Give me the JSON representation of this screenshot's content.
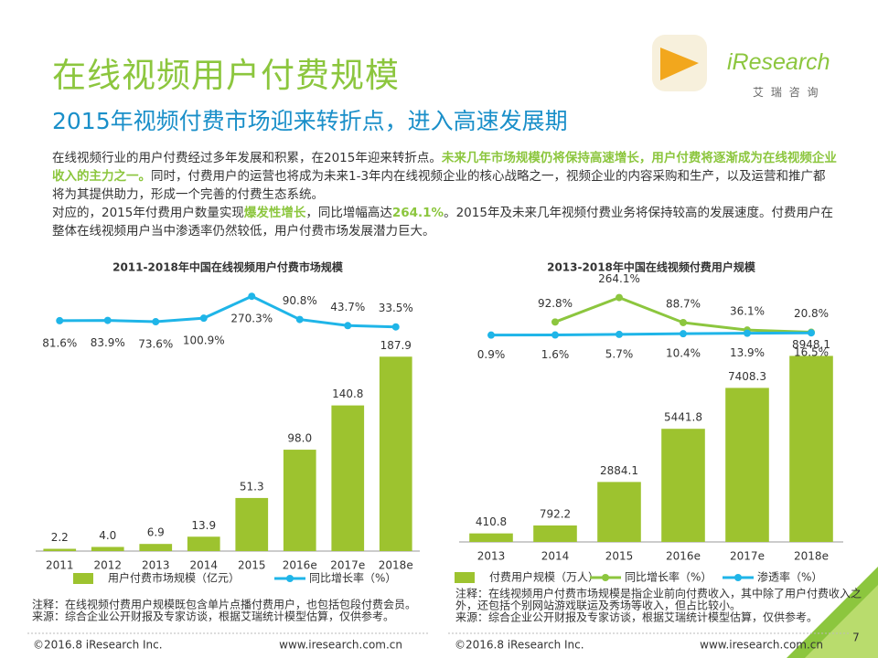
{
  "header": {
    "title": "在线视频用户付费规模",
    "subtitle": "2015年视频付费市场迎来转折点，进入高速发展期",
    "logo": "iResearch",
    "logo_cn": "艾 瑞 咨 询"
  },
  "paragraphs": [
    [
      {
        "text": "在线视频行业的用户付费经过多年发展和积累，在2015年迎来转折点。",
        "highlight": false
      },
      {
        "text": "未来几年市场规模仍将保持高速增长，用户付费将逐渐成为在线视频企业收入的主力之一。",
        "highlight": true
      },
      {
        "text": "同时，付费用户的运营也将成为未来1-3年内在线视频企业的核心战略之一，视频企业的内容采购和生产，以及运营和推广都将为其提供助力，形成一个完善的付费生态系统。",
        "highlight": false
      }
    ],
    [
      {
        "text": "对应的，2015年付费用户数量实现",
        "highlight": false
      },
      {
        "text": "爆发性增长",
        "highlight": true
      },
      {
        "text": "，同比增幅高达",
        "highlight": false
      },
      {
        "text": "264.1%",
        "highlight": true
      },
      {
        "text": "。2015年及未来几年视频付费业务将保持较高的发展速度。付费用户在整体在线视频用户当中渗透率仍然较低，用户付费市场发展潜力巨大。",
        "highlight": false
      }
    ]
  ],
  "chart_data": [
    {
      "type": "bar",
      "title": "2011-2018年中国在线视频用户付费市场规模",
      "categories": [
        "2011",
        "2012",
        "2013",
        "2014",
        "2015",
        "2016e",
        "2017e",
        "2018e"
      ],
      "series": [
        {
          "name": "用户付费市场规模（亿元）",
          "color": "#9dc32f",
          "values": [
            2.2,
            4.0,
            6.9,
            13.9,
            51.3,
            98.0,
            140.8,
            187.9
          ],
          "value_labels": [
            "2.2",
            "4.0",
            "6.9",
            "13.9",
            "51.3",
            "98.0",
            "140.8",
            "187.9"
          ]
        },
        {
          "name": "同比增长率（%）",
          "color": "#1fb5e8",
          "axis": "y2",
          "values": [
            81.6,
            83.9,
            73.6,
            100.9,
            270.3,
            90.8,
            43.7,
            33.5
          ],
          "value_labels": [
            "81.6%",
            "83.9%",
            "73.6%",
            "100.9%",
            "270.3%",
            "90.8%",
            "43.7%",
            "33.5%"
          ]
        }
      ],
      "ylim": [
        0,
        250
      ],
      "y2lim": [
        -1700,
        300
      ],
      "notes": [
        "注释：在线视频付费用户规模既包含单片点播付费用户，也包括包段付费会员。",
        "来源：综合企业公开财报及专家访谈，根据艾瑞统计模型估算，仅供参考。"
      ]
    },
    {
      "type": "bar",
      "title": "2013-2018年中国在线视频付费用户规模",
      "categories": [
        "2013",
        "2014",
        "2015",
        "2016e",
        "2017e",
        "2018e"
      ],
      "series": [
        {
          "name": "付费用户规模（万人）",
          "color": "#9dc32f",
          "values": [
            410.8,
            792.2,
            2884.1,
            5441.8,
            7408.3,
            8948.1
          ]
        },
        {
          "name": "同比增长率（%）",
          "color": "#8cc63e",
          "axis": "y2",
          "values": [
            null,
            92.8,
            264.1,
            88.7,
            36.1,
            20.8
          ],
          "value_labels": [
            null,
            "92.8%",
            "264.1%",
            "88.7%",
            "36.1%",
            "20.8%"
          ]
        },
        {
          "name": "渗透率（%）",
          "color": "#1fb5e8",
          "axis": "y2",
          "values": [
            0.9,
            1.6,
            5.7,
            10.4,
            13.9,
            16.5
          ],
          "value_labels": [
            "0.9%",
            "1.6%",
            "5.7%",
            "10.4%",
            "13.9%",
            "16.5%"
          ]
        }
      ],
      "ylim": [
        0,
        12000
      ],
      "y2lim": [
        -1450,
        300
      ],
      "notes": [
        "注释：在线视频用户付费市场规模是指企业前向付费收入，其中除了用户付费收入之",
        "外，还包括个别网站游戏联运及秀场等收入，但占比较小。",
        "来源：综合企业公开财报及专家访谈，根据艾瑞统计模型估算，仅供参考。"
      ]
    }
  ],
  "footer": {
    "items": [
      "©2016.8 iResearch Inc.",
      "www.iresearch.com.cn",
      "©2016.8 iResearch Inc.",
      "www.iresearch.com.cn"
    ],
    "page": "7"
  }
}
